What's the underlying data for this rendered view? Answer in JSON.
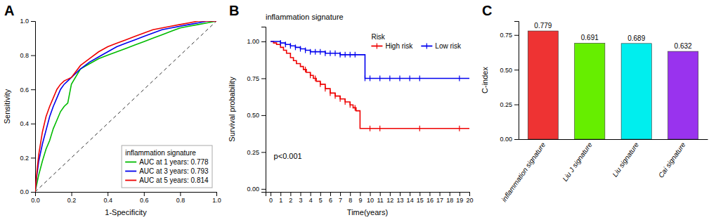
{
  "chart_data": [
    {
      "type": "line",
      "title": "A",
      "xlabel": "1-Specificity",
      "ylabel": "Sensitivity",
      "legend_title": "inflammation signature",
      "legend": "lower right",
      "grid": false,
      "series": [
        {
          "name": "AUC at 1 years: 0.778",
          "color": "#00BB00",
          "x": [
            0,
            0.01,
            0.02,
            0.04,
            0.06,
            0.08,
            0.1,
            0.12,
            0.14,
            0.16,
            0.18,
            0.2,
            0.25,
            0.3,
            0.35,
            0.4,
            0.45,
            0.5,
            0.55,
            0.6,
            0.65,
            0.7,
            0.75,
            0.8,
            0.85,
            0.9,
            0.95,
            1.0
          ],
          "values": [
            0,
            0.05,
            0.1,
            0.18,
            0.25,
            0.3,
            0.37,
            0.42,
            0.47,
            0.5,
            0.52,
            0.63,
            0.72,
            0.75,
            0.78,
            0.8,
            0.82,
            0.84,
            0.86,
            0.88,
            0.9,
            0.92,
            0.94,
            0.96,
            0.97,
            0.98,
            0.99,
            1.0
          ]
        },
        {
          "name": "AUC at 3 years: 0.793",
          "color": "#0000EE",
          "x": [
            0,
            0.01,
            0.02,
            0.04,
            0.06,
            0.08,
            0.1,
            0.12,
            0.14,
            0.16,
            0.18,
            0.2,
            0.25,
            0.3,
            0.35,
            0.4,
            0.45,
            0.5,
            0.55,
            0.6,
            0.65,
            0.7,
            0.75,
            0.8,
            0.85,
            0.9,
            0.95,
            1.0
          ],
          "values": [
            0,
            0.1,
            0.18,
            0.28,
            0.36,
            0.44,
            0.5,
            0.55,
            0.6,
            0.63,
            0.65,
            0.67,
            0.72,
            0.76,
            0.79,
            0.82,
            0.85,
            0.87,
            0.89,
            0.91,
            0.93,
            0.95,
            0.96,
            0.97,
            0.98,
            0.99,
            1.0,
            1.0
          ]
        },
        {
          "name": "AUC at 5 years: 0.814",
          "color": "#EE0000",
          "x": [
            0,
            0.01,
            0.02,
            0.04,
            0.06,
            0.08,
            0.1,
            0.12,
            0.14,
            0.16,
            0.18,
            0.2,
            0.25,
            0.3,
            0.35,
            0.4,
            0.45,
            0.5,
            0.55,
            0.6,
            0.65,
            0.7,
            0.75,
            0.8,
            0.85,
            0.9,
            0.95,
            1.0
          ],
          "values": [
            0,
            0.12,
            0.22,
            0.35,
            0.44,
            0.5,
            0.55,
            0.6,
            0.63,
            0.65,
            0.66,
            0.67,
            0.74,
            0.78,
            0.82,
            0.85,
            0.87,
            0.89,
            0.91,
            0.93,
            0.95,
            0.96,
            0.97,
            0.98,
            0.99,
            1.0,
            1.0,
            1.0
          ]
        }
      ],
      "xlim": [
        0,
        1
      ],
      "ylim": [
        0,
        1
      ],
      "xticks": [
        {
          "value": 0,
          "label": "0.0"
        },
        0.2,
        0.4,
        0.6,
        0.8,
        {
          "value": 1,
          "label": "1.0"
        }
      ],
      "yticks": [
        {
          "value": 0,
          "label": "0.0"
        },
        0.2,
        0.4,
        0.6,
        0.8,
        {
          "value": 1,
          "label": "1.0"
        }
      ]
    },
    {
      "type": "step",
      "title": "B",
      "subtitle": "inflammation signature",
      "xlabel": "Time(years)",
      "ylabel": "Survival probability",
      "annotations": [
        "p<0.001"
      ],
      "legend_title": "Risk",
      "legend": "upper right",
      "grid": false,
      "series": [
        {
          "name": "High risk",
          "color": "#EE0000",
          "x": [
            0,
            0.3,
            0.6,
            1.0,
            1.3,
            1.6,
            2.0,
            2.3,
            2.6,
            3.0,
            3.3,
            3.6,
            4.0,
            4.3,
            4.6,
            5.0,
            5.5,
            6.0,
            6.5,
            7.0,
            7.5,
            8.0,
            8.3,
            8.6,
            9.0,
            9.5,
            10,
            11,
            12,
            13,
            14,
            15,
            16,
            17,
            18,
            19,
            20
          ],
          "values": [
            1.0,
            0.99,
            0.98,
            0.96,
            0.94,
            0.92,
            0.89,
            0.87,
            0.85,
            0.83,
            0.81,
            0.79,
            0.77,
            0.75,
            0.73,
            0.71,
            0.68,
            0.65,
            0.63,
            0.61,
            0.59,
            0.57,
            0.55,
            0.53,
            0.41,
            0.41,
            0.41,
            0.41,
            0.41,
            0.41,
            0.41,
            0.41,
            0.41,
            0.41,
            0.41,
            0.41,
            0.41
          ],
          "censor_x": [
            3.5,
            4.0,
            4.5,
            5.0,
            5.5,
            6.0,
            6.5,
            7.0,
            7.5,
            8.0,
            8.5,
            10,
            11,
            15,
            19
          ],
          "censor_y": [
            0.81,
            0.77,
            0.75,
            0.71,
            0.68,
            0.65,
            0.63,
            0.61,
            0.59,
            0.57,
            0.55,
            0.41,
            0.41,
            0.41,
            0.41
          ]
        },
        {
          "name": "Low risk",
          "color": "#0000EE",
          "x": [
            0,
            0.5,
            1.0,
            1.5,
            2.0,
            2.5,
            3.0,
            3.5,
            4.0,
            4.5,
            5.0,
            5.5,
            6.0,
            6.5,
            7.0,
            7.5,
            8.0,
            8.5,
            9.0,
            9.5,
            10.0,
            10.5,
            11.0,
            12.0,
            13.0,
            14.0,
            15.0,
            15.5,
            16,
            17,
            18,
            19,
            20
          ],
          "values": [
            1.0,
            1.0,
            0.99,
            0.98,
            0.97,
            0.96,
            0.95,
            0.94,
            0.93,
            0.93,
            0.93,
            0.92,
            0.92,
            0.92,
            0.91,
            0.91,
            0.91,
            0.91,
            0.91,
            0.75,
            0.75,
            0.75,
            0.75,
            0.75,
            0.75,
            0.75,
            0.75,
            0.75,
            0.75,
            0.75,
            0.75,
            0.75,
            0.75
          ],
          "censor_x": [
            1.0,
            1.5,
            2.0,
            2.5,
            3.0,
            3.5,
            4.0,
            4.5,
            5.0,
            5.5,
            6.0,
            6.5,
            7.0,
            7.5,
            8.0,
            8.5,
            9.5,
            10,
            11,
            12,
            13,
            14,
            15,
            19
          ],
          "censor_y": [
            0.99,
            0.98,
            0.97,
            0.96,
            0.95,
            0.94,
            0.93,
            0.93,
            0.93,
            0.92,
            0.92,
            0.92,
            0.91,
            0.91,
            0.91,
            0.91,
            0.75,
            0.75,
            0.75,
            0.75,
            0.75,
            0.75,
            0.75,
            0.75
          ]
        }
      ],
      "xlim": [
        -0.5,
        20
      ],
      "ylim": [
        -0.02,
        1.1
      ],
      "xticks": [
        0,
        1,
        2,
        3,
        4,
        5,
        6,
        7,
        8,
        9,
        10,
        11,
        12,
        13,
        14,
        15,
        16,
        17,
        18,
        19,
        20
      ],
      "yticks": [
        {
          "value": 0,
          "label": "0.00"
        },
        0.25,
        {
          "value": 0.5,
          "label": "0.50"
        },
        0.75,
        {
          "value": 1,
          "label": "1.00"
        }
      ]
    },
    {
      "type": "bar",
      "title": "C",
      "ylabel": "C-index",
      "categories": [
        "inflammation signature",
        "Liu J signature",
        "Liu signature",
        "Cai signature"
      ],
      "values": [
        0.779,
        0.691,
        0.689,
        0.632
      ],
      "colors": [
        "#EE3333",
        "#66EE00",
        "#00EEEE",
        "#9933EE"
      ],
      "ylim": [
        0,
        0.85
      ],
      "yticks": [
        {
          "value": 0,
          "label": "0.00"
        },
        0.25,
        {
          "value": 0.5,
          "label": "0.50"
        },
        0.75
      ],
      "data_labels": true,
      "grid": false
    }
  ]
}
